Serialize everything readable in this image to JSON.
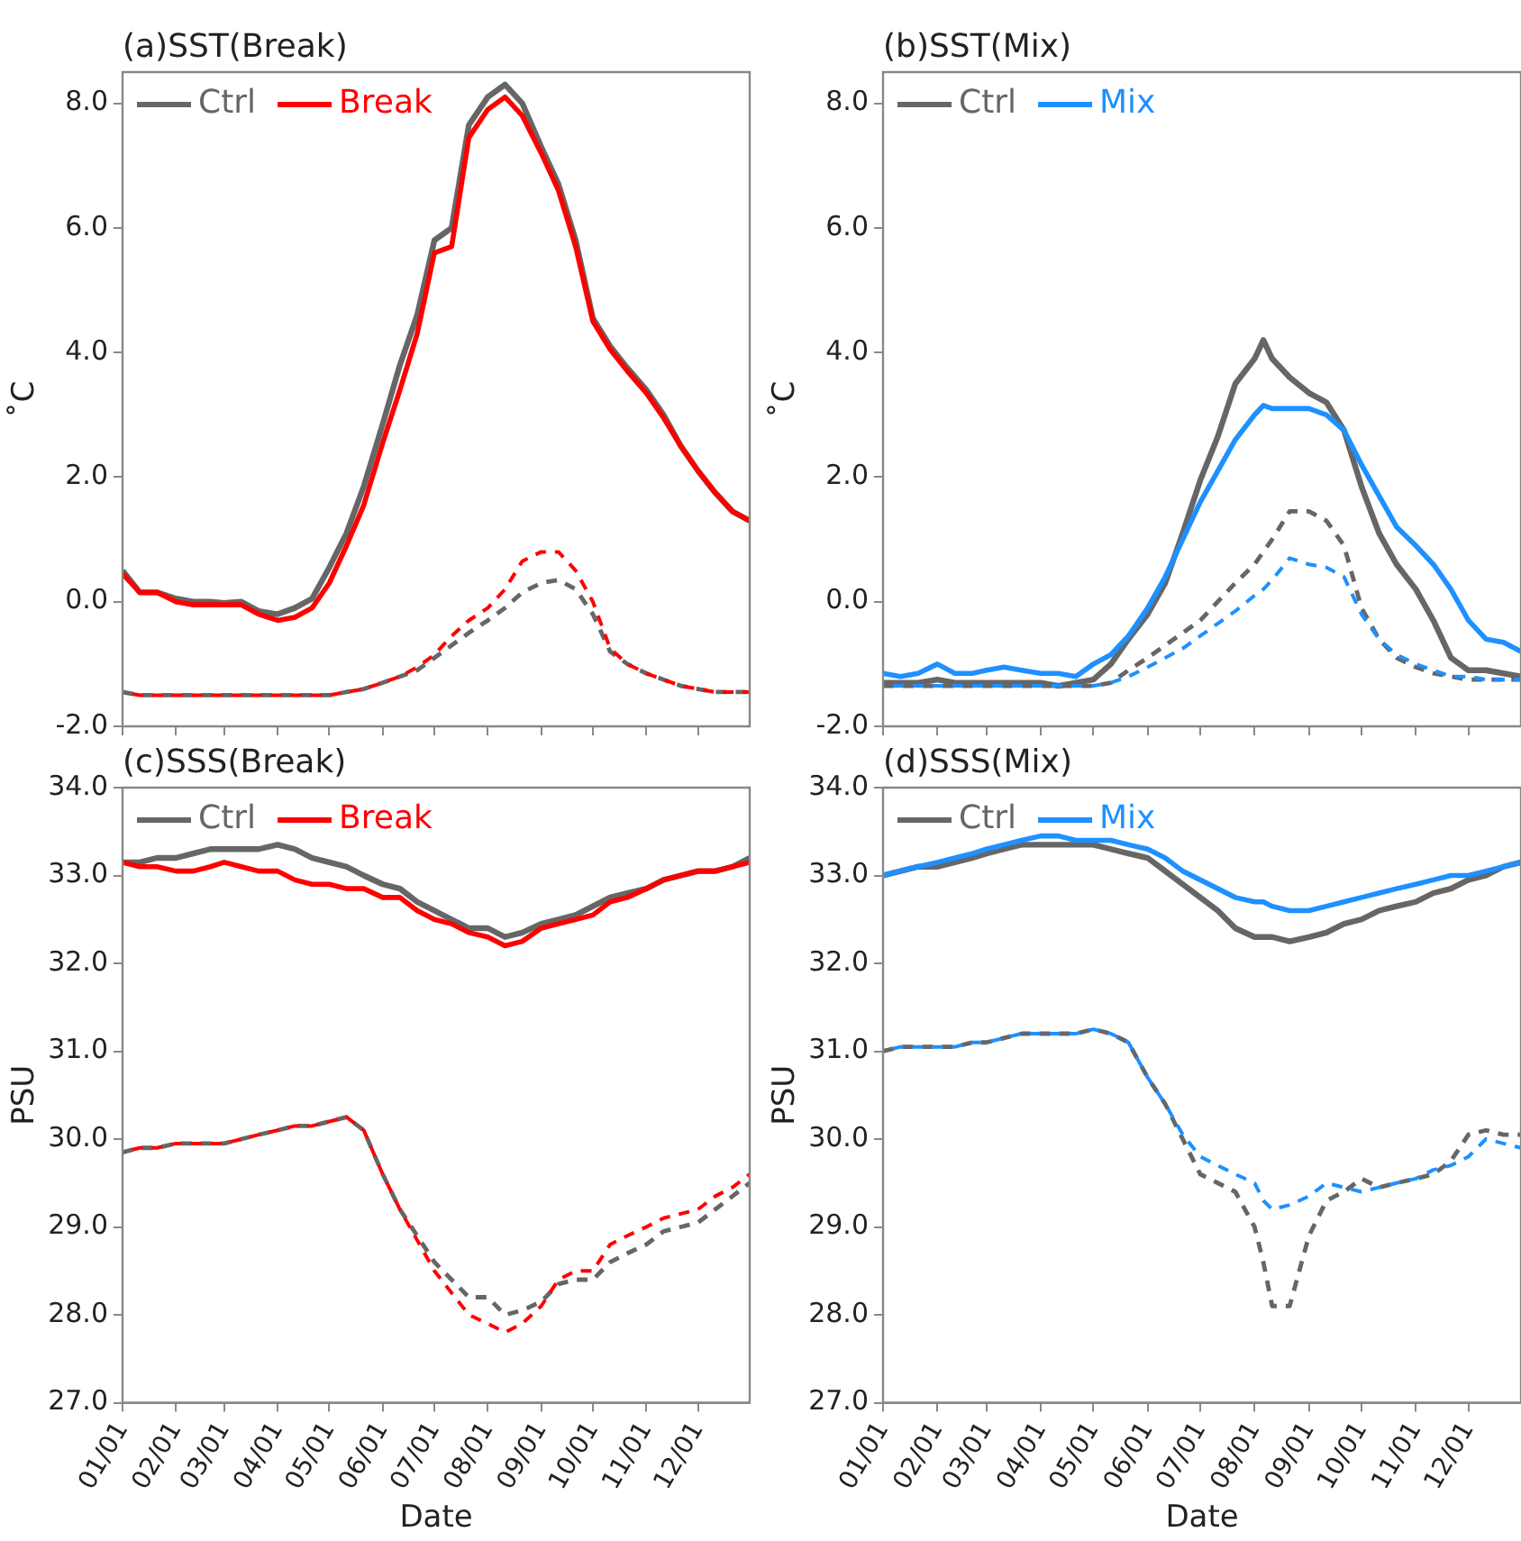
{
  "chart_data": [
    {
      "type": "line",
      "title": "(a)SST(Break)",
      "ylabel": "˚C",
      "legend": "top left",
      "grid": false,
      "marker": "none",
      "tick_labels": "y",
      "x": [
        "--01-01",
        "--01-11",
        "--01-21",
        "--02-01",
        "--02-11",
        "--02-21",
        "--03-01",
        "--03-11",
        "--03-21",
        "--04-01",
        "--04-11",
        "--04-21",
        "--05-01",
        "--05-11",
        "--05-21",
        "--06-01",
        "--06-11",
        "--06-21",
        "--07-01",
        "--07-11",
        "--07-21",
        "--08-01",
        "--08-11",
        "--08-21",
        "--09-01",
        "--09-11",
        "--09-21",
        "--10-01",
        "--10-11",
        "--10-21",
        "--11-01",
        "--11-11",
        "--11-21",
        "--12-01",
        "--12-11",
        "--12-21",
        "--12-31"
      ],
      "xlim": [
        "--01-01",
        "--12-31"
      ],
      "xticks": [
        {
          "value": "--01-01",
          "label": "01/01"
        },
        {
          "value": "--02-01",
          "label": "02/01"
        },
        {
          "value": "--03-01",
          "label": "03/01"
        },
        {
          "value": "--04-01",
          "label": "04/01"
        },
        {
          "value": "--05-01",
          "label": "05/01"
        },
        {
          "value": "--06-01",
          "label": "06/01"
        },
        {
          "value": "--07-01",
          "label": "07/01"
        },
        {
          "value": "--08-01",
          "label": "08/01"
        },
        {
          "value": "--09-01",
          "label": "09/01"
        },
        {
          "value": "--10-01",
          "label": "10/01"
        },
        {
          "value": "--11-01",
          "label": "11/01"
        },
        {
          "value": "--12-01",
          "label": "12/01"
        }
      ],
      "ylim": [
        -2,
        8.5
      ],
      "yticks": [
        {
          "value": -2,
          "label": "-2.0"
        },
        {
          "value": 0,
          "label": "0.0"
        },
        {
          "value": 2,
          "label": "2.0"
        },
        {
          "value": 4,
          "label": "4.0"
        },
        {
          "value": 6,
          "label": "6.0"
        },
        {
          "value": 8,
          "label": "8.0"
        }
      ],
      "series": [
        {
          "name": "Ctrl",
          "color": "#666666",
          "line_style": "solid",
          "values": [
            0.5,
            0.15,
            0.15,
            0.05,
            0.0,
            0.0,
            -0.02,
            0.0,
            -0.15,
            -0.2,
            -0.1,
            0.05,
            0.55,
            1.1,
            1.85,
            2.85,
            3.8,
            4.6,
            5.8,
            6.0,
            7.65,
            8.1,
            8.3,
            8.0,
            7.3,
            6.7,
            5.8,
            4.55,
            4.1,
            3.75,
            3.4,
            3.0,
            2.5,
            2.1,
            1.75,
            1.45,
            1.3
          ]
        },
        {
          "name": "Break",
          "color": "#ff0000",
          "line_style": "solid",
          "values": [
            0.45,
            0.15,
            0.15,
            0.0,
            -0.05,
            -0.05,
            -0.05,
            -0.05,
            -0.2,
            -0.3,
            -0.25,
            -0.1,
            0.3,
            0.9,
            1.55,
            2.55,
            3.4,
            4.3,
            5.6,
            5.7,
            7.45,
            7.9,
            8.1,
            7.8,
            7.2,
            6.6,
            5.7,
            4.5,
            4.05,
            3.7,
            3.35,
            2.95,
            2.5,
            2.1,
            1.75,
            1.45,
            1.3
          ]
        },
        {
          "color": "#666666",
          "line_style": "dashed",
          "values": [
            -1.45,
            -1.5,
            -1.5,
            -1.5,
            -1.5,
            -1.5,
            -1.5,
            -1.5,
            -1.5,
            -1.5,
            -1.5,
            -1.5,
            -1.5,
            -1.45,
            -1.4,
            -1.3,
            -1.2,
            -1.1,
            -0.9,
            -0.7,
            -0.5,
            -0.3,
            -0.1,
            0.15,
            0.3,
            0.35,
            0.2,
            -0.2,
            -0.8,
            -1.0,
            -1.15,
            -1.25,
            -1.35,
            -1.4,
            -1.45,
            -1.45,
            -1.45
          ]
        },
        {
          "color": "#ff0000",
          "line_style": "dashed",
          "values": [
            -1.45,
            -1.5,
            -1.5,
            -1.5,
            -1.5,
            -1.5,
            -1.5,
            -1.5,
            -1.5,
            -1.5,
            -1.5,
            -1.5,
            -1.5,
            -1.45,
            -1.4,
            -1.3,
            -1.2,
            -1.05,
            -0.85,
            -0.55,
            -0.3,
            -0.1,
            0.2,
            0.65,
            0.8,
            0.8,
            0.5,
            0.0,
            -0.75,
            -1.0,
            -1.15,
            -1.25,
            -1.35,
            -1.4,
            -1.45,
            -1.45,
            -1.45
          ]
        }
      ]
    },
    {
      "type": "line",
      "title": "(b)SST(Mix)",
      "ylabel": "˚C",
      "legend": "top left",
      "grid": false,
      "marker": "none",
      "tick_labels": "y",
      "x": [
        "--01-01",
        "--01-11",
        "--01-21",
        "--02-01",
        "--02-11",
        "--02-21",
        "--03-01",
        "--03-11",
        "--03-21",
        "--04-01",
        "--04-11",
        "--04-21",
        "--05-01",
        "--05-11",
        "--05-21",
        "--06-01",
        "--06-11",
        "--06-21",
        "--07-01",
        "--07-11",
        "--07-21",
        "--08-01",
        "--08-06",
        "--08-11",
        "--08-21",
        "--09-01",
        "--09-11",
        "--09-21",
        "--10-01",
        "--10-11",
        "--10-21",
        "--11-01",
        "--11-11",
        "--11-21",
        "--12-01",
        "--12-11",
        "--12-21",
        "--12-31"
      ],
      "xlim": [
        "--01-01",
        "--12-31"
      ],
      "xticks": [
        {
          "value": "--01-01",
          "label": "01/01"
        },
        {
          "value": "--02-01",
          "label": "02/01"
        },
        {
          "value": "--03-01",
          "label": "03/01"
        },
        {
          "value": "--04-01",
          "label": "04/01"
        },
        {
          "value": "--05-01",
          "label": "05/01"
        },
        {
          "value": "--06-01",
          "label": "06/01"
        },
        {
          "value": "--07-01",
          "label": "07/01"
        },
        {
          "value": "--08-01",
          "label": "08/01"
        },
        {
          "value": "--09-01",
          "label": "09/01"
        },
        {
          "value": "--10-01",
          "label": "10/01"
        },
        {
          "value": "--11-01",
          "label": "11/01"
        },
        {
          "value": "--12-01",
          "label": "12/01"
        }
      ],
      "ylim": [
        -2,
        8.5
      ],
      "yticks": [
        {
          "value": -2,
          "label": "-2.0"
        },
        {
          "value": 0,
          "label": "0.0"
        },
        {
          "value": 2,
          "label": "2.0"
        },
        {
          "value": 4,
          "label": "4.0"
        },
        {
          "value": 6,
          "label": "6.0"
        },
        {
          "value": 8,
          "label": "8.0"
        }
      ],
      "series": [
        {
          "name": "Ctrl",
          "color": "#666666",
          "line_style": "solid",
          "values": [
            -1.3,
            -1.3,
            -1.3,
            -1.25,
            -1.3,
            -1.3,
            -1.3,
            -1.3,
            -1.3,
            -1.3,
            -1.35,
            -1.3,
            -1.25,
            -1.0,
            -0.6,
            -0.2,
            0.3,
            1.1,
            1.95,
            2.65,
            3.5,
            3.9,
            4.2,
            3.9,
            3.6,
            3.35,
            3.2,
            2.75,
            1.85,
            1.1,
            0.6,
            0.2,
            -0.3,
            -0.9,
            -1.1,
            -1.1,
            -1.15,
            -1.2
          ]
        },
        {
          "name": "Mix",
          "color": "#1e90ff",
          "line_style": "solid",
          "values": [
            -1.15,
            -1.2,
            -1.15,
            -1.0,
            -1.15,
            -1.15,
            -1.1,
            -1.05,
            -1.1,
            -1.15,
            -1.15,
            -1.2,
            -1.0,
            -0.85,
            -0.55,
            -0.1,
            0.4,
            1.0,
            1.6,
            2.1,
            2.6,
            3.0,
            3.15,
            3.1,
            3.1,
            3.1,
            3.0,
            2.75,
            2.2,
            1.7,
            1.2,
            0.9,
            0.6,
            0.2,
            -0.3,
            -0.6,
            -0.65,
            -0.8
          ]
        },
        {
          "color": "#666666",
          "line_style": "dashed",
          "values": [
            -1.35,
            -1.35,
            -1.35,
            -1.35,
            -1.35,
            -1.35,
            -1.35,
            -1.35,
            -1.35,
            -1.35,
            -1.35,
            -1.35,
            -1.35,
            -1.3,
            -1.1,
            -0.9,
            -0.7,
            -0.5,
            -0.3,
            0.0,
            0.3,
            0.6,
            0.8,
            1.0,
            1.45,
            1.45,
            1.3,
            0.9,
            -0.1,
            -0.6,
            -0.9,
            -1.05,
            -1.15,
            -1.2,
            -1.25,
            -1.25,
            -1.25,
            -1.25
          ]
        },
        {
          "color": "#1e90ff",
          "line_style": "dashed",
          "values": [
            -1.35,
            -1.35,
            -1.35,
            -1.35,
            -1.35,
            -1.35,
            -1.35,
            -1.35,
            -1.35,
            -1.35,
            -1.35,
            -1.35,
            -1.35,
            -1.3,
            -1.2,
            -1.05,
            -0.9,
            -0.75,
            -0.55,
            -0.35,
            -0.15,
            0.1,
            0.2,
            0.35,
            0.7,
            0.6,
            0.55,
            0.4,
            -0.2,
            -0.6,
            -0.85,
            -1.0,
            -1.1,
            -1.2,
            -1.2,
            -1.25,
            -1.25,
            -1.25
          ]
        }
      ]
    },
    {
      "type": "line",
      "title": "(c)SSS(Break)",
      "xlabel": "Date",
      "ylabel": "PSU",
      "legend": "top left",
      "grid": false,
      "marker": "none",
      "x": [
        "--01-01",
        "--01-11",
        "--01-21",
        "--02-01",
        "--02-11",
        "--02-21",
        "--03-01",
        "--03-11",
        "--03-21",
        "--04-01",
        "--04-11",
        "--04-21",
        "--05-01",
        "--05-11",
        "--05-21",
        "--06-01",
        "--06-11",
        "--06-21",
        "--07-01",
        "--07-11",
        "--07-21",
        "--08-01",
        "--08-11",
        "--08-21",
        "--09-01",
        "--09-11",
        "--09-21",
        "--10-01",
        "--10-11",
        "--10-21",
        "--11-01",
        "--11-11",
        "--11-21",
        "--12-01",
        "--12-11",
        "--12-21",
        "--12-31"
      ],
      "xlim": [
        "--01-01",
        "--12-31"
      ],
      "xticks": [
        {
          "value": "--01-01",
          "label": "01/01"
        },
        {
          "value": "--02-01",
          "label": "02/01"
        },
        {
          "value": "--03-01",
          "label": "03/01"
        },
        {
          "value": "--04-01",
          "label": "04/01"
        },
        {
          "value": "--05-01",
          "label": "05/01"
        },
        {
          "value": "--06-01",
          "label": "06/01"
        },
        {
          "value": "--07-01",
          "label": "07/01"
        },
        {
          "value": "--08-01",
          "label": "08/01"
        },
        {
          "value": "--09-01",
          "label": "09/01"
        },
        {
          "value": "--10-01",
          "label": "10/01"
        },
        {
          "value": "--11-01",
          "label": "11/01"
        },
        {
          "value": "--12-01",
          "label": "12/01"
        }
      ],
      "ylim": [
        27,
        34
      ],
      "yticks": [
        {
          "value": 27,
          "label": "27.0"
        },
        {
          "value": 28,
          "label": "28.0"
        },
        {
          "value": 29,
          "label": "29.0"
        },
        {
          "value": 30,
          "label": "30.0"
        },
        {
          "value": 31,
          "label": "31.0"
        },
        {
          "value": 32,
          "label": "32.0"
        },
        {
          "value": 33,
          "label": "33.0"
        },
        {
          "value": 34,
          "label": "34.0"
        }
      ],
      "series": [
        {
          "name": "Ctrl",
          "color": "#666666",
          "line_style": "solid",
          "values": [
            33.15,
            33.15,
            33.2,
            33.2,
            33.25,
            33.3,
            33.3,
            33.3,
            33.3,
            33.35,
            33.3,
            33.2,
            33.15,
            33.1,
            33.0,
            32.9,
            32.85,
            32.7,
            32.6,
            32.5,
            32.4,
            32.4,
            32.3,
            32.35,
            32.45,
            32.5,
            32.55,
            32.65,
            32.75,
            32.8,
            32.85,
            32.95,
            33.0,
            33.05,
            33.05,
            33.1,
            33.2
          ]
        },
        {
          "name": "Break",
          "color": "#ff0000",
          "line_style": "solid",
          "values": [
            33.15,
            33.1,
            33.1,
            33.05,
            33.05,
            33.1,
            33.15,
            33.1,
            33.05,
            33.05,
            32.95,
            32.9,
            32.9,
            32.85,
            32.85,
            32.75,
            32.75,
            32.6,
            32.5,
            32.45,
            32.35,
            32.3,
            32.2,
            32.25,
            32.4,
            32.45,
            32.5,
            32.55,
            32.7,
            32.75,
            32.85,
            32.95,
            33.0,
            33.05,
            33.05,
            33.1,
            33.15
          ]
        },
        {
          "color": "#666666",
          "line_style": "dashed",
          "values": [
            29.85,
            29.9,
            29.9,
            29.95,
            29.95,
            29.95,
            29.95,
            30.0,
            30.05,
            30.1,
            30.15,
            30.15,
            30.2,
            30.25,
            30.1,
            29.6,
            29.2,
            28.9,
            28.6,
            28.4,
            28.2,
            28.2,
            28.0,
            28.05,
            28.15,
            28.35,
            28.4,
            28.4,
            28.6,
            28.7,
            28.8,
            28.95,
            29.0,
            29.05,
            29.2,
            29.35,
            29.5
          ]
        },
        {
          "color": "#ff0000",
          "line_style": "dashed",
          "values": [
            29.85,
            29.9,
            29.9,
            29.95,
            29.95,
            29.95,
            29.95,
            30.0,
            30.05,
            30.1,
            30.15,
            30.15,
            30.2,
            30.25,
            30.1,
            29.6,
            29.2,
            28.85,
            28.5,
            28.25,
            28.0,
            27.9,
            27.8,
            27.9,
            28.1,
            28.4,
            28.5,
            28.5,
            28.8,
            28.9,
            29.0,
            29.1,
            29.15,
            29.2,
            29.35,
            29.45,
            29.6
          ]
        }
      ]
    },
    {
      "type": "line",
      "title": "(d)SSS(Mix)",
      "xlabel": "Date",
      "ylabel": "PSU",
      "legend": "top left",
      "grid": false,
      "marker": "none",
      "x": [
        "--01-01",
        "--01-11",
        "--01-21",
        "--02-01",
        "--02-11",
        "--02-21",
        "--03-01",
        "--03-11",
        "--03-21",
        "--04-01",
        "--04-11",
        "--04-21",
        "--05-01",
        "--05-11",
        "--05-21",
        "--06-01",
        "--06-11",
        "--06-21",
        "--07-01",
        "--07-11",
        "--07-21",
        "--08-01",
        "--08-06",
        "--08-11",
        "--08-21",
        "--09-01",
        "--09-11",
        "--09-21",
        "--10-01",
        "--10-11",
        "--10-21",
        "--11-01",
        "--11-11",
        "--11-21",
        "--12-01",
        "--12-11",
        "--12-21",
        "--12-31"
      ],
      "xlim": [
        "--01-01",
        "--12-31"
      ],
      "xticks": [
        {
          "value": "--01-01",
          "label": "01/01"
        },
        {
          "value": "--02-01",
          "label": "02/01"
        },
        {
          "value": "--03-01",
          "label": "03/01"
        },
        {
          "value": "--04-01",
          "label": "04/01"
        },
        {
          "value": "--05-01",
          "label": "05/01"
        },
        {
          "value": "--06-01",
          "label": "06/01"
        },
        {
          "value": "--07-01",
          "label": "07/01"
        },
        {
          "value": "--08-01",
          "label": "08/01"
        },
        {
          "value": "--09-01",
          "label": "09/01"
        },
        {
          "value": "--10-01",
          "label": "10/01"
        },
        {
          "value": "--11-01",
          "label": "11/01"
        },
        {
          "value": "--12-01",
          "label": "12/01"
        }
      ],
      "ylim": [
        27,
        34
      ],
      "yticks": [
        {
          "value": 27,
          "label": "27.0"
        },
        {
          "value": 28,
          "label": "28.0"
        },
        {
          "value": 29,
          "label": "29.0"
        },
        {
          "value": 30,
          "label": "30.0"
        },
        {
          "value": 31,
          "label": "31.0"
        },
        {
          "value": 32,
          "label": "32.0"
        },
        {
          "value": 33,
          "label": "33.0"
        },
        {
          "value": 34,
          "label": "34.0"
        }
      ],
      "series": [
        {
          "name": "Ctrl",
          "color": "#666666",
          "line_style": "solid",
          "values": [
            33.0,
            33.05,
            33.1,
            33.1,
            33.15,
            33.2,
            33.25,
            33.3,
            33.35,
            33.35,
            33.35,
            33.35,
            33.35,
            33.3,
            33.25,
            33.2,
            33.05,
            32.9,
            32.75,
            32.6,
            32.4,
            32.3,
            32.3,
            32.3,
            32.25,
            32.3,
            32.35,
            32.45,
            32.5,
            32.6,
            32.65,
            32.7,
            32.8,
            32.85,
            32.95,
            33.0,
            33.1,
            33.15
          ]
        },
        {
          "name": "Mix",
          "color": "#1e90ff",
          "line_style": "solid",
          "values": [
            33.0,
            33.05,
            33.1,
            33.15,
            33.2,
            33.25,
            33.3,
            33.35,
            33.4,
            33.45,
            33.45,
            33.4,
            33.4,
            33.4,
            33.35,
            33.3,
            33.2,
            33.05,
            32.95,
            32.85,
            32.75,
            32.7,
            32.7,
            32.65,
            32.6,
            32.6,
            32.65,
            32.7,
            32.75,
            32.8,
            32.85,
            32.9,
            32.95,
            33.0,
            33.0,
            33.05,
            33.1,
            33.15
          ]
        },
        {
          "color": "#666666",
          "line_style": "dashed",
          "values": [
            31.0,
            31.05,
            31.05,
            31.05,
            31.05,
            31.1,
            31.1,
            31.15,
            31.2,
            31.2,
            31.2,
            31.2,
            31.25,
            31.2,
            31.1,
            30.7,
            30.4,
            30.0,
            29.6,
            29.5,
            29.4,
            29.0,
            28.6,
            28.1,
            28.1,
            28.9,
            29.3,
            29.4,
            29.55,
            29.45,
            29.5,
            29.55,
            29.6,
            29.75,
            30.05,
            30.1,
            30.05,
            30.05
          ]
        },
        {
          "color": "#1e90ff",
          "line_style": "dashed",
          "values": [
            31.0,
            31.05,
            31.05,
            31.05,
            31.05,
            31.1,
            31.1,
            31.15,
            31.2,
            31.2,
            31.2,
            31.2,
            31.25,
            31.2,
            31.1,
            30.7,
            30.4,
            30.05,
            29.8,
            29.7,
            29.6,
            29.5,
            29.3,
            29.2,
            29.25,
            29.35,
            29.5,
            29.45,
            29.4,
            29.45,
            29.5,
            29.55,
            29.65,
            29.7,
            29.8,
            30.0,
            29.95,
            29.9
          ]
        }
      ]
    }
  ]
}
